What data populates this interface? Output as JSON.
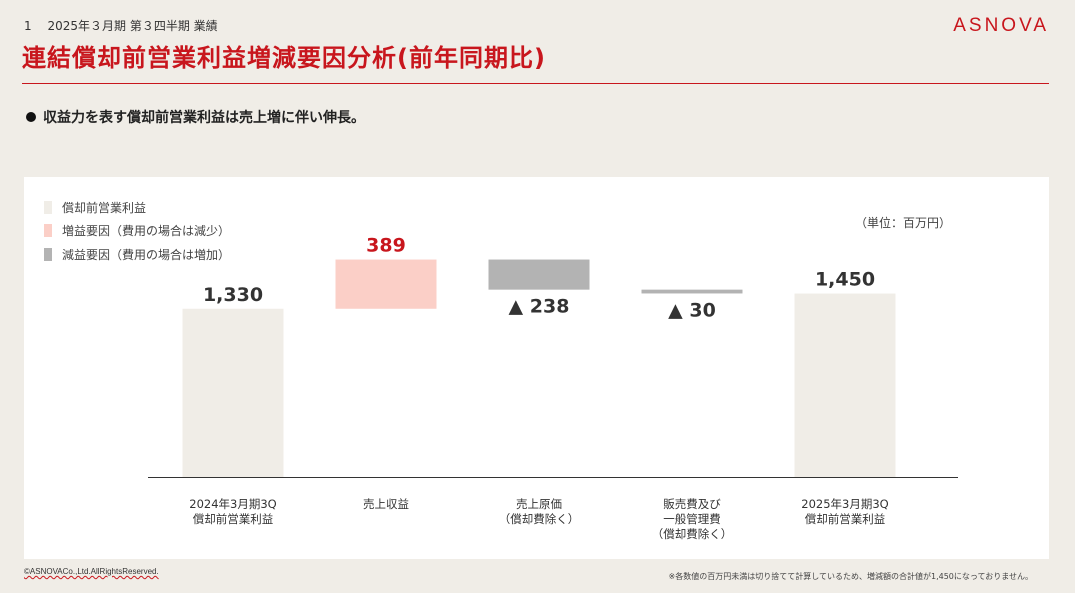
{
  "header": {
    "page_number": "1",
    "section": "2025年３月期 第３四半期 業績",
    "logo": "ASNOVA",
    "title": "連結償却前営業利益増減要因分析(前年同期比)"
  },
  "bullet": "収益力を表す償却前営業利益は売上増に伴い伸長。",
  "legend": [
    {
      "label": "償却前営業利益",
      "color": "#f0ede7"
    },
    {
      "label": "増益要因（費用の場合は減少）",
      "color": "#fbcfc7"
    },
    {
      "label": "減益要因（費用の場合は増加）",
      "color": "#b3b3b3"
    }
  ],
  "unit_label": "（単位：百万円）",
  "colors": {
    "total": "#f0ede7",
    "increase": "#fbcfc7",
    "decrease": "#b3b3b3",
    "increase_label": "#c8161d",
    "brand": "#c8161d"
  },
  "chart_data": {
    "type": "bar",
    "subtype": "waterfall",
    "categories": [
      [
        "2024年3月期3Q",
        "償却前営業利益"
      ],
      [
        "売上収益"
      ],
      [
        "売上原価",
        "（償却費除く）"
      ],
      [
        "販売費及び",
        "一般管理費",
        "（償却費除く）"
      ],
      [
        "2025年3月期3Q",
        "償却前営業利益"
      ]
    ],
    "steps": [
      {
        "kind": "total",
        "value": 1330,
        "label": "1,330"
      },
      {
        "kind": "increase",
        "value": 389,
        "label": "389"
      },
      {
        "kind": "decrease",
        "value": 238,
        "label": "▲ 238"
      },
      {
        "kind": "decrease",
        "value": 30,
        "label": "▲ 30"
      },
      {
        "kind": "total",
        "value": 1450,
        "label": "1,450"
      }
    ],
    "ylim": [
      0,
      1800
    ]
  },
  "footer": {
    "copyright": "©ASNOVACo.,Ltd.AllRightsReserved.",
    "note": "※各数値の百万円未満は切り捨てて計算しているため、増減額の合計値が1,450になっておりません。"
  }
}
